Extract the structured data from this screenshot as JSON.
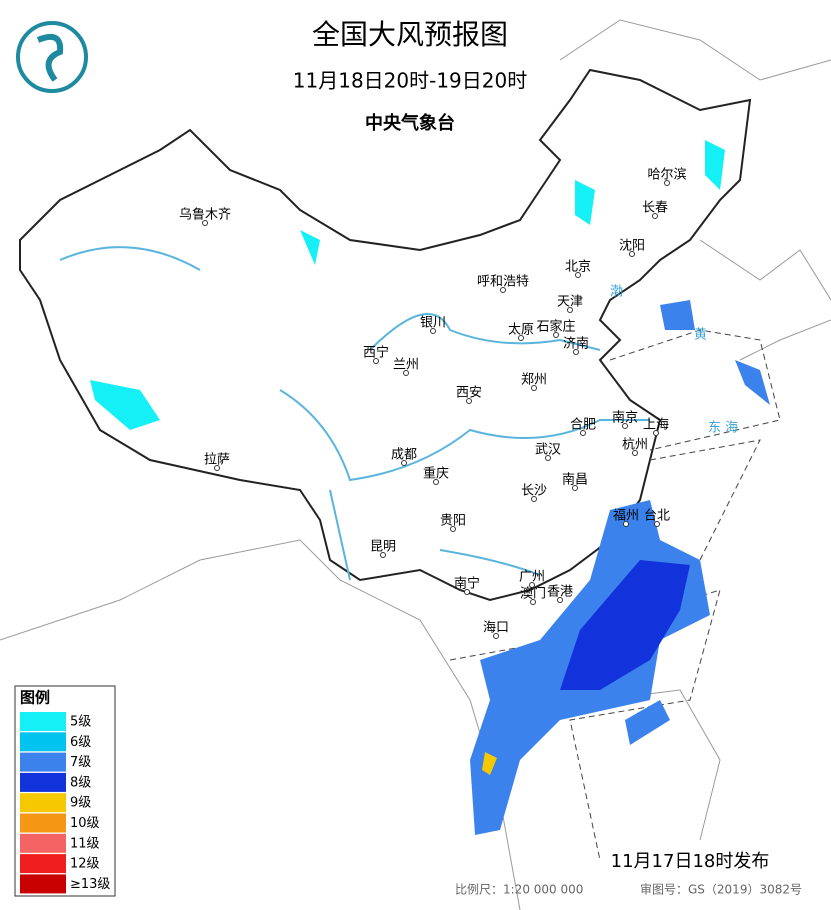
{
  "header": {
    "title": "全国大风预报图",
    "period": "11月18日20时-19日20时",
    "issuer": "中央气象台"
  },
  "cities": [
    {
      "label": "哈尔滨"
    },
    {
      "label": "长春"
    },
    {
      "label": "沈阳"
    },
    {
      "label": "北京"
    },
    {
      "label": "天津"
    },
    {
      "label": "呼和浩特"
    },
    {
      "label": "石家庄"
    },
    {
      "label": "太原"
    },
    {
      "label": "济南"
    },
    {
      "label": "银川"
    },
    {
      "label": "西宁"
    },
    {
      "label": "兰州"
    },
    {
      "label": "西安"
    },
    {
      "label": "郑州"
    },
    {
      "label": "南京"
    },
    {
      "label": "合肥"
    },
    {
      "label": "上海"
    },
    {
      "label": "杭州"
    },
    {
      "label": "武汉"
    },
    {
      "label": "成都"
    },
    {
      "label": "重庆"
    },
    {
      "label": "拉萨"
    },
    {
      "label": "长沙"
    },
    {
      "label": "南昌"
    },
    {
      "label": "福州"
    },
    {
      "label": "台北"
    },
    {
      "label": "贵阳"
    },
    {
      "label": "昆明"
    },
    {
      "label": "南宁"
    },
    {
      "label": "广州"
    },
    {
      "label": "香港"
    },
    {
      "label": "澳门"
    },
    {
      "label": "海口"
    },
    {
      "label": "乌鲁木齐"
    }
  ],
  "seas": [
    {
      "label": "东 海"
    },
    {
      "label": "黄"
    },
    {
      "label": "渤"
    }
  ],
  "legend": {
    "title": "图例",
    "items": [
      {
        "label": "5级",
        "color": "#14f0f5"
      },
      {
        "label": "6级",
        "color": "#00c3f0"
      },
      {
        "label": "7级",
        "color": "#3c82ec"
      },
      {
        "label": "8级",
        "color": "#1232dc"
      },
      {
        "label": "9级",
        "color": "#f5c800"
      },
      {
        "label": "10级",
        "color": "#f59614"
      },
      {
        "label": "11级",
        "color": "#f56464"
      },
      {
        "label": "12级",
        "color": "#f01e1e"
      },
      {
        "label": "≥13级",
        "color": "#c80000"
      }
    ]
  },
  "footer": {
    "issued": "11月17日18时发布",
    "scale": "比例尺：1:20 000 000",
    "review": "审图号：GS（2019）3082号"
  }
}
